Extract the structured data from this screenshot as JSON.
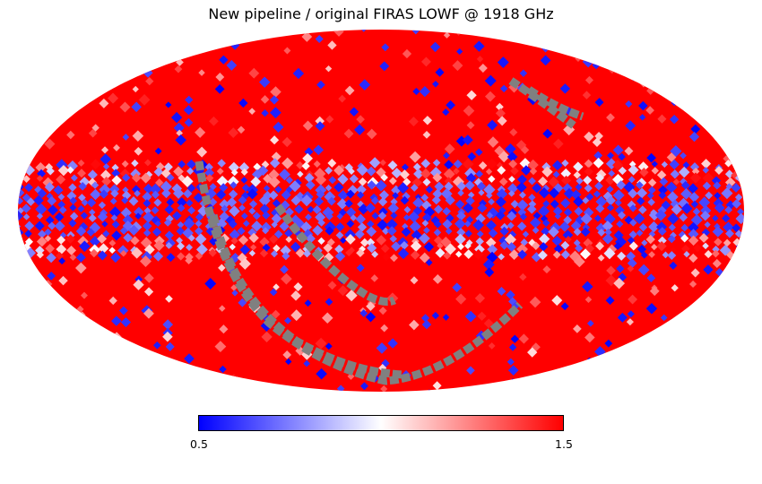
{
  "title": "New pipeline / original FIRAS LOWF @ 1918 GHz",
  "projection": "mollweide",
  "colormap": {
    "name": "bwr",
    "low_color": "#0000ff",
    "mid_color": "#ffffff",
    "high_color": "#ff0000",
    "masked_color": "#808080"
  },
  "colorbar": {
    "min_label": "0.5",
    "max_label": "1.5",
    "min": 0.5,
    "max": 1.5
  }
}
